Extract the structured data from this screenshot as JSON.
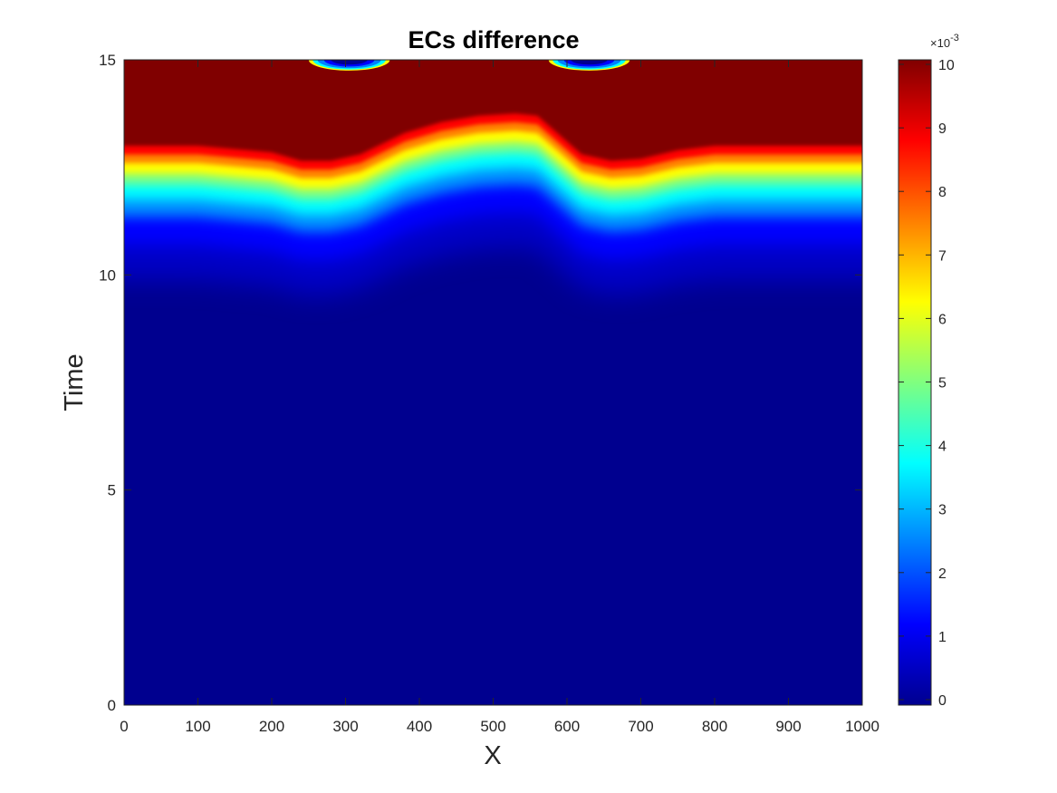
{
  "chart_data": {
    "type": "heatmap",
    "title": "ECs difference",
    "xlabel": "X",
    "ylabel": "Time",
    "xlim": [
      0,
      1000
    ],
    "ylim": [
      0,
      15
    ],
    "x_ticks": [
      0,
      100,
      200,
      300,
      400,
      500,
      600,
      700,
      800,
      900,
      1000
    ],
    "y_ticks": [
      0,
      5,
      10,
      15
    ],
    "x_tick_labels": [
      "0",
      "100",
      "200",
      "300",
      "400",
      "500",
      "600",
      "700",
      "800",
      "900",
      "1000"
    ],
    "y_tick_labels": [
      "0",
      "5",
      "10",
      "15"
    ],
    "colormap": "jet",
    "clim": [
      0,
      0.01
    ],
    "colorbar": {
      "ticks": [
        0,
        1,
        2,
        3,
        4,
        5,
        6,
        7,
        8,
        9,
        10
      ],
      "tick_labels": [
        "0",
        "1",
        "2",
        "3",
        "4",
        "5",
        "6",
        "7",
        "8",
        "9",
        "10"
      ],
      "exponent_base": "×10",
      "exponent_power": "-3",
      "placement": "right"
    },
    "front_profile": {
      "x": [
        0,
        100,
        200,
        240,
        280,
        320,
        380,
        430,
        480,
        530,
        560,
        580,
        620,
        660,
        700,
        750,
        800,
        900,
        1000
      ],
      "time_at_value_0_006": [
        12.2,
        12.2,
        12.05,
        11.85,
        11.85,
        12.0,
        12.5,
        12.75,
        12.9,
        12.95,
        12.9,
        12.6,
        12.0,
        11.85,
        11.9,
        12.1,
        12.2,
        12.2,
        12.2
      ]
    },
    "blue_pockets": [
      {
        "x_center": 305,
        "x_halfwidth": 55,
        "time_bottom": 14.75
      },
      {
        "x_center": 630,
        "x_halfwidth": 55,
        "time_bottom": 14.75
      }
    ],
    "grid": false
  }
}
